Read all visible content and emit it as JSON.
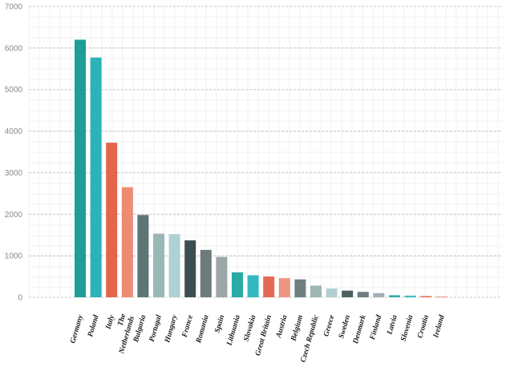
{
  "chart_data": {
    "type": "bar",
    "title": "",
    "xlabel": "",
    "ylabel": "",
    "ylim": [
      0,
      7000
    ],
    "yticks": [
      0,
      1000,
      2000,
      3000,
      4000,
      5000,
      6000,
      7000
    ],
    "grid": true,
    "legend": "none",
    "categories": [
      "Germany",
      "Poland",
      "Italy",
      "The Netherlands",
      "Bulgaria",
      "Portugal",
      "Hungary",
      "France",
      "Romania",
      "Spain",
      "Lithuania",
      "Slovakia",
      "Great Britain",
      "Austria",
      "Belgium",
      "Czech Republic",
      "Greece",
      "Sweden",
      "Denmark",
      "Finland",
      "Latvia",
      "Slovenia",
      "Croatia",
      "Ireland"
    ],
    "values": [
      6200,
      5770,
      3720,
      2650,
      1980,
      1530,
      1520,
      1370,
      1140,
      970,
      600,
      530,
      500,
      460,
      430,
      280,
      210,
      160,
      130,
      100,
      50,
      40,
      30,
      20
    ],
    "colors": [
      "#1e9e96",
      "#2bb3b9",
      "#e2664c",
      "#ee8b73",
      "#5e7576",
      "#9ab7b6",
      "#aed1d3",
      "#3c4e50",
      "#6c7b7a",
      "#9aa6a8",
      "#2aaba6",
      "#33b8c0",
      "#e36b55",
      "#ee9482",
      "#6e8082",
      "#9eb6b6",
      "#b2d0d0",
      "#4d6062",
      "#6c7c7e",
      "#a2b1b3",
      "#34ada9",
      "#3cbcc3",
      "#e87358",
      "#f09a88"
    ]
  }
}
